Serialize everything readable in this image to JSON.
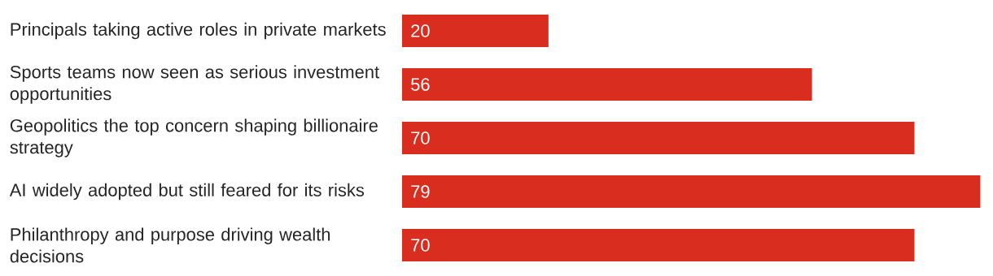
{
  "chart_data": {
    "type": "bar",
    "orientation": "horizontal",
    "categories": [
      "Principals taking active roles in private markets",
      "Sports teams now seen as serious investment opportunities",
      "Geopolitics the top concern shaping billionaire strategy",
      "AI widely adopted but still feared for its risks",
      "Philanthropy and purpose driving wealth decisions"
    ],
    "values": [
      20,
      56,
      70,
      79,
      70
    ],
    "color": "#d92e1f",
    "data_labels": true
  }
}
